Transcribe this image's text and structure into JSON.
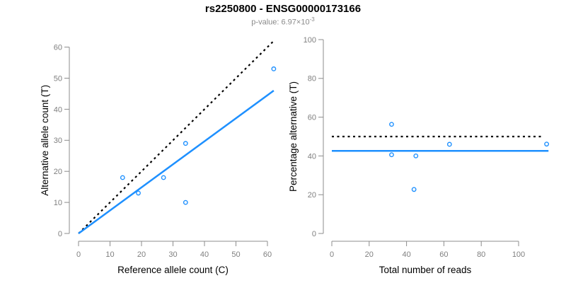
{
  "header": {
    "title": "rs2250800 - ENSG00000173166",
    "pvalue_text": "p-value: 6.97×10",
    "pvalue_exponent": "-3"
  },
  "colors": {
    "accent_blue": "#1E90FF",
    "reference_line_black": "#000000",
    "axis_gray": "#8c8c8c",
    "tick_label_gray": "#7f7f7f",
    "axis_title_black": "#000000",
    "subtitle_gray": "#8a8a8a"
  },
  "chart_data": [
    {
      "name": "allele-count-scatter",
      "type": "scatter",
      "title": "",
      "xlabel": "Reference allele count (C)",
      "ylabel": "Alternative allele count (T)",
      "xlim": [
        0,
        62
      ],
      "ylim": [
        0,
        62
      ],
      "xticks": [
        0,
        10,
        20,
        30,
        40,
        50,
        60
      ],
      "yticks": [
        0,
        10,
        20,
        30,
        40,
        50,
        60
      ],
      "grid": false,
      "legend": false,
      "points": [
        [
          14,
          18
        ],
        [
          19,
          13
        ],
        [
          27,
          18
        ],
        [
          34,
          10
        ],
        [
          34,
          29
        ],
        [
          62,
          53
        ]
      ],
      "lines": [
        {
          "name": "identity-diagonal",
          "style": "dotted",
          "color": "#000000",
          "from": [
            0,
            0
          ],
          "to": [
            62,
            62
          ]
        },
        {
          "name": "regression",
          "style": "solid",
          "color": "#1E90FF",
          "from": [
            0,
            0
          ],
          "to": [
            62,
            46
          ]
        }
      ]
    },
    {
      "name": "percentage-alternative-scatter",
      "type": "scatter",
      "title": "",
      "xlabel": "Total number of reads",
      "ylabel": "Percentage alternative (T)",
      "xlim": [
        0,
        116
      ],
      "ylim": [
        0,
        100
      ],
      "xticks": [
        0,
        20,
        40,
        60,
        80,
        100
      ],
      "yticks": [
        0,
        20,
        40,
        60,
        80,
        100
      ],
      "grid": false,
      "legend": false,
      "points": [
        [
          32,
          56.3
        ],
        [
          32,
          40.6
        ],
        [
          44,
          22.7
        ],
        [
          45,
          40
        ],
        [
          63,
          46
        ],
        [
          115,
          46.1
        ]
      ],
      "lines": [
        {
          "name": "fifty-percent-reference",
          "style": "dotted",
          "color": "#000000",
          "from": [
            0,
            50
          ],
          "to": [
            113,
            50
          ]
        },
        {
          "name": "mean-percentage",
          "style": "solid",
          "color": "#1E90FF",
          "from": [
            0,
            42.6
          ],
          "to": [
            116,
            42.6
          ]
        }
      ]
    }
  ]
}
